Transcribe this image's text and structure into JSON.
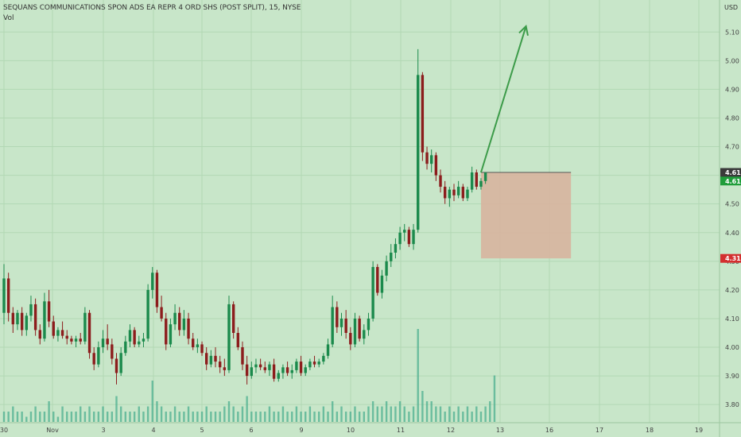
{
  "header": {
    "title": "SEQUANS COMMUNICATIONS SPON ADS EA REPR 4 ORD SHS (POST SPLIT), 15, NYSE",
    "vol_label": "Vol"
  },
  "colors": {
    "background": "#c8e6c9",
    "grid": "#b2d8b4",
    "up": "#1b8a4c",
    "down": "#8c1d1d",
    "volume": "#4caf8f",
    "arrow": "#3c9b49",
    "stop_box": "#d7b49e",
    "badge_green": "#1f9d3a",
    "badge_red": "#d32f2f",
    "badge_dark": "#3a3a3a"
  },
  "chart_data": {
    "type": "candlestick",
    "currency": "USD",
    "ylim": [
      3.77,
      5.17
    ],
    "y_ticks": [
      "5.10",
      "5.00",
      "4.90",
      "4.80",
      "4.70",
      "4.60",
      "4.50",
      "4.40",
      "4.30",
      "4.20",
      "4.10",
      "4.00",
      "3.90",
      "3.80"
    ],
    "x_ticks": [
      "30",
      "Nov",
      "3",
      "4",
      "5",
      "6",
      "9",
      "10",
      "11",
      "12",
      "13",
      "16",
      "17",
      "18",
      "19"
    ],
    "price_badges": [
      {
        "label": "4.61",
        "kind": "dark",
        "value": 4.61
      },
      {
        "label": "4.61",
        "kind": "green",
        "value": 4.58
      },
      {
        "label": "4.31",
        "kind": "red",
        "value": 4.31
      }
    ],
    "candles": [
      [
        4.12,
        4.29,
        4.08,
        4.24
      ],
      [
        4.24,
        4.26,
        4.09,
        4.12
      ],
      [
        4.12,
        4.14,
        4.05,
        4.08
      ],
      [
        4.08,
        4.13,
        4.06,
        4.12
      ],
      [
        4.12,
        4.14,
        4.04,
        4.06
      ],
      [
        4.06,
        4.12,
        4.04,
        4.11
      ],
      [
        4.11,
        4.18,
        4.09,
        4.15
      ],
      [
        4.15,
        4.17,
        4.04,
        4.06
      ],
      [
        4.06,
        4.08,
        4.01,
        4.03
      ],
      [
        4.03,
        4.19,
        4.02,
        4.16
      ],
      [
        4.16,
        4.2,
        4.07,
        4.09
      ],
      [
        4.09,
        4.11,
        4.03,
        4.04
      ],
      [
        4.04,
        4.07,
        4.02,
        4.06
      ],
      [
        4.06,
        4.09,
        4.03,
        4.04
      ],
      [
        4.04,
        4.06,
        4.01,
        4.03
      ],
      [
        4.03,
        4.04,
        4.01,
        4.02
      ],
      [
        4.02,
        4.04,
        4.0,
        4.03
      ],
      [
        4.03,
        4.05,
        4.01,
        4.02
      ],
      [
        4.02,
        4.14,
        4.01,
        4.12
      ],
      [
        4.12,
        4.13,
        3.96,
        3.98
      ],
      [
        3.98,
        4.0,
        3.92,
        3.94
      ],
      [
        3.94,
        4.02,
        3.93,
        4.0
      ],
      [
        4.0,
        4.06,
        3.98,
        4.03
      ],
      [
        4.03,
        4.08,
        3.99,
        4.01
      ],
      [
        4.01,
        4.03,
        3.94,
        3.96
      ],
      [
        3.96,
        3.98,
        3.87,
        3.91
      ],
      [
        3.91,
        4.0,
        3.9,
        3.98
      ],
      [
        3.98,
        4.04,
        3.97,
        4.02
      ],
      [
        4.02,
        4.08,
        4.0,
        4.06
      ],
      [
        4.06,
        4.07,
        4.0,
        4.01
      ],
      [
        4.01,
        4.04,
        4.0,
        4.02
      ],
      [
        4.02,
        4.05,
        4.0,
        4.03
      ],
      [
        4.03,
        4.22,
        4.02,
        4.2
      ],
      [
        4.2,
        4.28,
        4.17,
        4.26
      ],
      [
        4.26,
        4.27,
        4.12,
        4.14
      ],
      [
        4.14,
        4.18,
        4.09,
        4.1
      ],
      [
        4.1,
        4.12,
        3.99,
        4.01
      ],
      [
        4.01,
        4.1,
        4.0,
        4.08
      ],
      [
        4.08,
        4.15,
        4.06,
        4.12
      ],
      [
        4.12,
        4.14,
        4.04,
        4.06
      ],
      [
        4.06,
        4.13,
        4.04,
        4.1
      ],
      [
        4.1,
        4.12,
        4.01,
        4.03
      ],
      [
        4.03,
        4.05,
        3.99,
        4.0
      ],
      [
        4.0,
        4.03,
        3.98,
        4.01
      ],
      [
        4.01,
        4.02,
        3.97,
        3.98
      ],
      [
        3.98,
        4.0,
        3.92,
        3.94
      ],
      [
        3.94,
        3.99,
        3.93,
        3.97
      ],
      [
        3.97,
        4.0,
        3.93,
        3.95
      ],
      [
        3.95,
        3.97,
        3.91,
        3.93
      ],
      [
        3.93,
        3.96,
        3.9,
        3.92
      ],
      [
        3.92,
        4.18,
        3.91,
        4.15
      ],
      [
        4.15,
        4.16,
        4.03,
        4.05
      ],
      [
        4.05,
        4.07,
        3.99,
        4.0
      ],
      [
        4.0,
        4.02,
        3.92,
        3.94
      ],
      [
        3.94,
        3.97,
        3.87,
        3.9
      ],
      [
        3.9,
        3.95,
        3.89,
        3.93
      ],
      [
        3.93,
        3.96,
        3.91,
        3.94
      ],
      [
        3.94,
        3.96,
        3.92,
        3.93
      ],
      [
        3.93,
        3.95,
        3.91,
        3.92
      ],
      [
        3.92,
        3.95,
        3.9,
        3.94
      ],
      [
        3.94,
        3.96,
        3.88,
        3.89
      ],
      [
        3.89,
        3.92,
        3.88,
        3.91
      ],
      [
        3.91,
        3.94,
        3.89,
        3.93
      ],
      [
        3.93,
        3.95,
        3.9,
        3.91
      ],
      [
        3.91,
        3.94,
        3.89,
        3.92
      ],
      [
        3.92,
        3.96,
        3.91,
        3.95
      ],
      [
        3.95,
        3.97,
        3.9,
        3.91
      ],
      [
        3.91,
        3.94,
        3.9,
        3.93
      ],
      [
        3.93,
        3.96,
        3.92,
        3.95
      ],
      [
        3.95,
        3.97,
        3.93,
        3.94
      ],
      [
        3.94,
        3.96,
        3.93,
        3.95
      ],
      [
        3.95,
        3.98,
        3.94,
        3.97
      ],
      [
        3.97,
        4.03,
        3.96,
        4.01
      ],
      [
        4.01,
        4.18,
        4.0,
        4.14
      ],
      [
        4.14,
        4.16,
        4.05,
        4.07
      ],
      [
        4.07,
        4.12,
        4.04,
        4.1
      ],
      [
        4.1,
        4.13,
        4.03,
        4.05
      ],
      [
        4.05,
        4.07,
        3.99,
        4.01
      ],
      [
        4.01,
        4.12,
        4.0,
        4.1
      ],
      [
        4.1,
        4.11,
        4.02,
        4.03
      ],
      [
        4.03,
        4.08,
        4.01,
        4.06
      ],
      [
        4.06,
        4.12,
        4.04,
        4.1
      ],
      [
        4.1,
        4.3,
        4.09,
        4.28
      ],
      [
        4.28,
        4.29,
        4.18,
        4.19
      ],
      [
        4.19,
        4.27,
        4.17,
        4.25
      ],
      [
        4.25,
        4.32,
        4.23,
        4.3
      ],
      [
        4.3,
        4.36,
        4.28,
        4.33
      ],
      [
        4.33,
        4.38,
        4.31,
        4.36
      ],
      [
        4.36,
        4.42,
        4.34,
        4.4
      ],
      [
        4.4,
        4.43,
        4.37,
        4.41
      ],
      [
        4.41,
        4.42,
        4.35,
        4.36
      ],
      [
        4.36,
        4.43,
        4.34,
        4.41
      ],
      [
        4.41,
        5.04,
        4.4,
        4.95
      ],
      [
        4.95,
        4.96,
        4.65,
        4.68
      ],
      [
        4.68,
        4.7,
        4.62,
        4.64
      ],
      [
        4.64,
        4.69,
        4.61,
        4.67
      ],
      [
        4.67,
        4.68,
        4.58,
        4.6
      ],
      [
        4.6,
        4.62,
        4.54,
        4.56
      ],
      [
        4.56,
        4.58,
        4.5,
        4.52
      ],
      [
        4.52,
        4.56,
        4.49,
        4.55
      ],
      [
        4.55,
        4.57,
        4.51,
        4.53
      ],
      [
        4.53,
        4.58,
        4.52,
        4.56
      ],
      [
        4.56,
        4.57,
        4.51,
        4.52
      ],
      [
        4.52,
        4.56,
        4.51,
        4.55
      ],
      [
        4.55,
        4.63,
        4.54,
        4.61
      ],
      [
        4.61,
        4.62,
        4.55,
        4.56
      ],
      [
        4.56,
        4.59,
        4.55,
        4.58
      ],
      [
        4.58,
        4.61,
        4.57,
        4.61
      ]
    ],
    "volume": [
      2,
      2,
      3,
      2,
      2,
      1,
      2,
      3,
      2,
      2,
      4,
      2,
      1,
      3,
      2,
      2,
      2,
      3,
      2,
      3,
      2,
      2,
      3,
      2,
      2,
      5,
      3,
      2,
      2,
      2,
      3,
      2,
      3,
      8,
      4,
      3,
      2,
      2,
      3,
      2,
      2,
      3,
      2,
      2,
      2,
      3,
      2,
      2,
      2,
      3,
      4,
      3,
      2,
      3,
      5,
      2,
      2,
      2,
      2,
      3,
      2,
      2,
      3,
      2,
      2,
      3,
      2,
      2,
      3,
      2,
      2,
      3,
      2,
      4,
      2,
      3,
      2,
      2,
      3,
      2,
      2,
      3,
      4,
      3,
      3,
      4,
      3,
      3,
      4,
      3,
      2,
      3,
      18,
      6,
      4,
      4,
      3,
      3,
      2,
      3,
      2,
      3,
      2,
      3,
      2,
      3,
      2,
      3,
      4,
      9
    ],
    "annotations": [
      {
        "type": "arrow",
        "from": [
          106,
          4.61
        ],
        "to": [
          116,
          5.12
        ]
      },
      {
        "type": "stop_box",
        "x_from": 106,
        "x_to": 126,
        "y_top": 4.61,
        "y_bottom": 4.31
      },
      {
        "type": "horizontal_line",
        "value": 4.61,
        "x_from": 106,
        "x_to": 126
      }
    ]
  }
}
